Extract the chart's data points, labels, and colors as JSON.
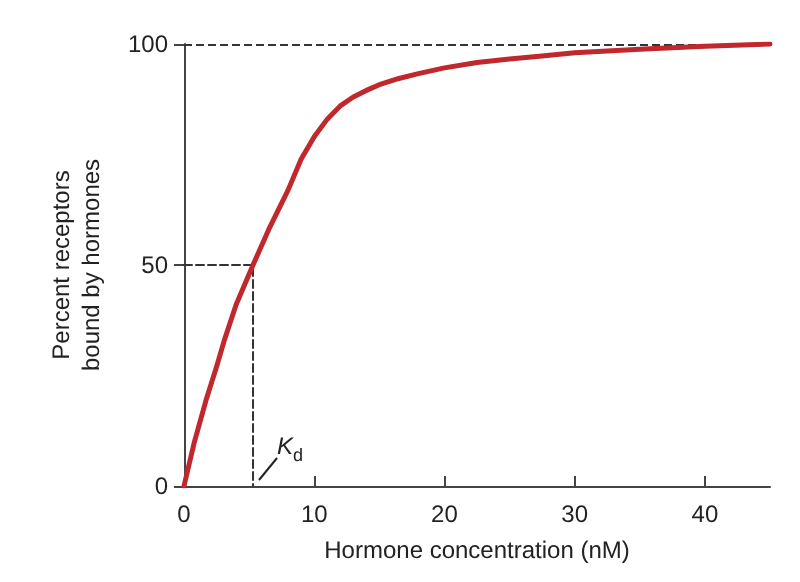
{
  "chart_data": {
    "type": "line",
    "xlabel": "Hormone concentration (nM)",
    "ylabel": "Percent receptors bound by hormones",
    "xlim": [
      0,
      45
    ],
    "xticks": [
      0,
      10,
      20,
      30,
      40
    ],
    "ylim": [
      0,
      100
    ],
    "yticks": [
      0,
      50,
      100
    ],
    "grid": false,
    "marker": "none",
    "series": [
      {
        "color": "#c0282d",
        "line_style": "solid",
        "x": [
          0,
          0.8,
          1.7,
          2.5,
          3.1,
          4,
          5.3,
          6.5,
          8,
          9,
          10,
          11,
          12,
          13,
          14,
          15,
          16.5,
          18,
          20,
          22.5,
          25,
          27.5,
          30,
          35,
          40,
          45
        ],
        "values": [
          0,
          10,
          19.5,
          27,
          33,
          41,
          50,
          58,
          67,
          74,
          79,
          83,
          86,
          88,
          89.5,
          90.8,
          92.2,
          93.3,
          94.6,
          95.8,
          96.6,
          97.3,
          98,
          98.8,
          99.5,
          100
        ]
      },
      {
        "color": "#333333",
        "line_style": "dashed",
        "x": [
          0,
          5.3,
          5.3
        ],
        "values": [
          50,
          50,
          0
        ]
      }
    ],
    "ref_lines": [
      {
        "axis": "y",
        "value": 100,
        "color": "#333333",
        "line_style": "dashed"
      }
    ],
    "annotations": [
      {
        "text": "K$_{d}$",
        "x": 5.3,
        "y": 0
      }
    ]
  }
}
